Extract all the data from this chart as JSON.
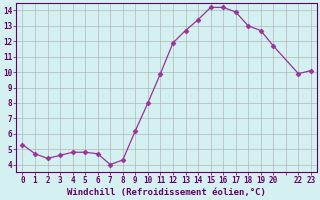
{
  "x": [
    0,
    1,
    2,
    3,
    4,
    5,
    6,
    7,
    8,
    9,
    10,
    11,
    12,
    13,
    14,
    15,
    16,
    17,
    18,
    19,
    20,
    22,
    23
  ],
  "y": [
    5.3,
    4.7,
    4.4,
    4.6,
    4.8,
    4.8,
    4.7,
    4.0,
    4.3,
    6.2,
    8.0,
    9.9,
    11.9,
    12.7,
    13.4,
    14.2,
    14.2,
    13.9,
    13.0,
    12.7,
    11.7,
    9.9,
    10.1
  ],
  "line_color": "#993399",
  "marker": "D",
  "marker_size": 2.5,
  "bg_color": "#d4f0f0",
  "grid_color": "#aaaaaa",
  "xlabel": "Windchill (Refroidissement éolien,°C)",
  "xlim": [
    -0.5,
    23.5
  ],
  "ylim": [
    3.5,
    14.5
  ],
  "yticks": [
    4,
    5,
    6,
    7,
    8,
    9,
    10,
    11,
    12,
    13,
    14
  ],
  "xtick_positions": [
    0,
    1,
    2,
    3,
    4,
    5,
    6,
    7,
    8,
    9,
    10,
    11,
    12,
    13,
    14,
    15,
    16,
    17,
    18,
    19,
    20,
    21,
    22,
    23
  ],
  "xtick_labels": [
    "0",
    "1",
    "2",
    "3",
    "4",
    "5",
    "6",
    "7",
    "8",
    "9",
    "10",
    "11",
    "12",
    "13",
    "14",
    "15",
    "16",
    "17",
    "18",
    "19",
    "20",
    "",
    "22",
    "23"
  ],
  "label_color": "#660066",
  "tick_color": "#660066",
  "spine_color": "#660066",
  "font_size": 5.5,
  "xlabel_fontsize": 6.5
}
